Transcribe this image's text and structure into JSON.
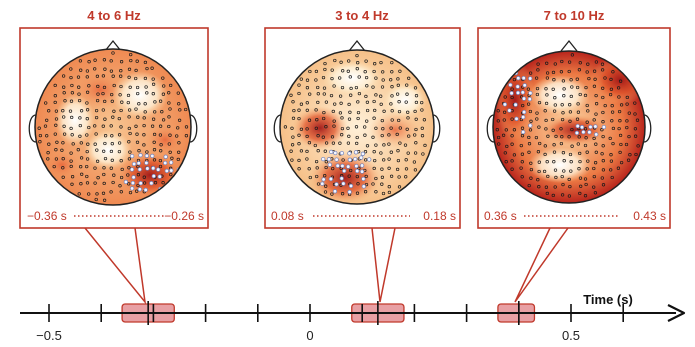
{
  "colors": {
    "accent": "#c0392b",
    "highlight_fill": "#e8a0a4",
    "axis": "#111111"
  },
  "axis": {
    "label": "Time (s)",
    "range": [
      -0.6,
      0.7
    ],
    "tick_values": [
      -0.5,
      -0.4,
      -0.3,
      -0.2,
      -0.1,
      0,
      0.1,
      0.2,
      0.3,
      0.4,
      0.5,
      0.6
    ],
    "tick_labels": [
      {
        "value": -0.5,
        "text": "−0.5"
      },
      {
        "value": 0,
        "text": "0"
      },
      {
        "value": 0.5,
        "text": "0.5"
      }
    ]
  },
  "panels": [
    {
      "id": "theta",
      "title": "4 to 6 Hz",
      "start_label": "−0.36 s",
      "end_label": "−0.26 s",
      "window": [
        -0.36,
        -0.26
      ],
      "marker": -0.31
    },
    {
      "id": "delta",
      "title": "3 to 4 Hz",
      "start_label": "0.08 s",
      "end_label": "0.18 s",
      "window": [
        0.08,
        0.18
      ],
      "marker": 0.13
    },
    {
      "id": "alpha",
      "title": "7 to 10 Hz",
      "start_label": "0.36 s",
      "end_label": "0.43 s",
      "window": [
        0.36,
        0.43
      ],
      "marker": 0.4
    }
  ]
}
